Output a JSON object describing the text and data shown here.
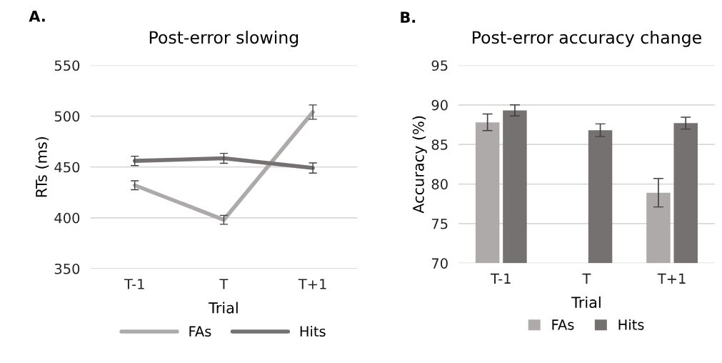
{
  "chart_data": [
    {
      "type": "line",
      "title": "Post-error slowing",
      "xlabel": "Trial",
      "ylabel": "RTs (ms)",
      "annotations": [
        "A."
      ],
      "categories": [
        "T-1",
        "T",
        "T+1"
      ],
      "series": [
        {
          "name": "FAs",
          "color": "#aeaaaa",
          "values": [
            432,
            398,
            504
          ],
          "errors": [
            4.4,
            4.4,
            7
          ]
        },
        {
          "name": "Hits",
          "color": "#767171",
          "values": [
            456,
            458.5,
            449
          ],
          "errors": [
            4.6,
            4.9,
            5
          ]
        }
      ],
      "ylim": [
        350,
        550
      ],
      "yticks": [
        350,
        400,
        450,
        500,
        550
      ],
      "grid": "y",
      "legend": "bottom",
      "marker": "none",
      "line_style": "solid"
    },
    {
      "type": "bar",
      "title": "Post-error accuracy change",
      "xlabel": "Trial",
      "ylabel": "Accuracy (%)",
      "annotations": [
        "B."
      ],
      "categories": [
        "T-1",
        "T",
        "T+1"
      ],
      "series": [
        {
          "name": "FAs",
          "color": "#aeaaaa",
          "values": [
            87.8,
            null,
            78.9
          ],
          "errors": [
            1.05,
            null,
            1.8
          ]
        },
        {
          "name": "Hits",
          "color": "#767171",
          "values": [
            89.3,
            86.8,
            87.7
          ],
          "errors": [
            0.7,
            0.8,
            0.75
          ]
        }
      ],
      "ylim": [
        70,
        95
      ],
      "yticks": [
        70,
        75,
        80,
        85,
        90,
        95
      ],
      "grid": "y",
      "legend": "bottom"
    }
  ]
}
